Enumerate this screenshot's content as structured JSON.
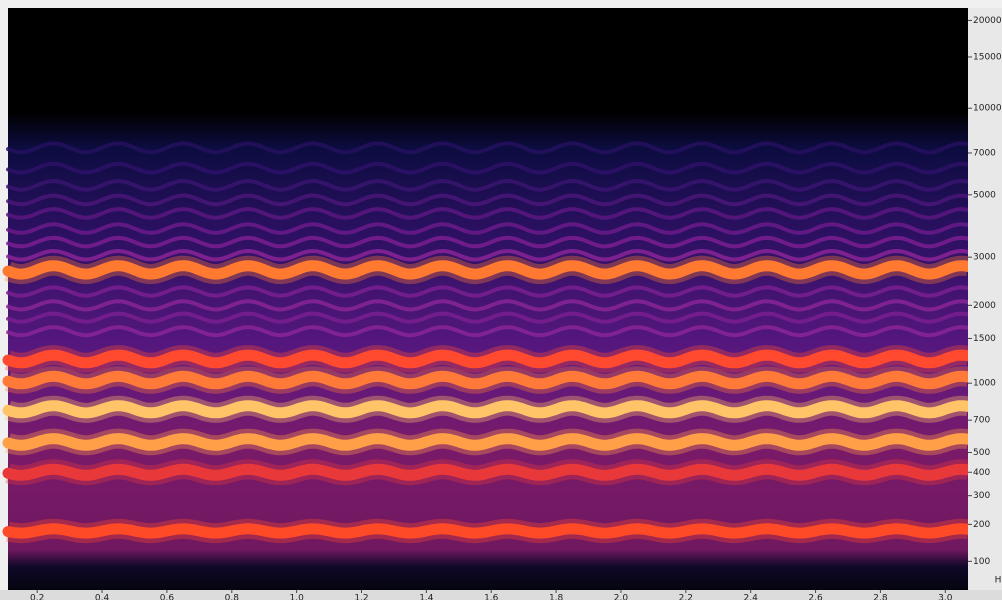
{
  "chart_data": {
    "type": "spectrogram",
    "xlim": [
      0.11,
      3.07
    ],
    "xticks": [
      0.2,
      0.4,
      0.6,
      0.8,
      {
        "value": 1,
        "label": "1.0"
      },
      1.2,
      1.4,
      1.6,
      1.8,
      {
        "value": 2,
        "label": "2.0"
      },
      2.2,
      2.4,
      2.6,
      2.8,
      {
        "value": 3,
        "label": "3.0"
      }
    ],
    "ylim": [
      40,
      22050
    ],
    "yticks": [
      100,
      200,
      300,
      400,
      500,
      700,
      1000,
      1500,
      2000,
      3000,
      5000,
      7000,
      10000,
      15000,
      20000
    ],
    "y_unit": "H",
    "bands": [
      {
        "freq": 180,
        "color": "#ff4a28"
      },
      {
        "freq": 400,
        "color": "#e8383a"
      },
      {
        "freq": 560,
        "color": "#ffa048"
      },
      {
        "freq": 780,
        "color": "#ffc468"
      },
      {
        "freq": 1030,
        "color": "#ff7a38"
      },
      {
        "freq": 1250,
        "color": "#ff4a30"
      },
      {
        "freq": 1600,
        "color": "#8a2496"
      },
      {
        "freq": 1800,
        "color": "#7a1e90"
      },
      {
        "freq": 2000,
        "color": "#8a2496"
      },
      {
        "freq": 2250,
        "color": "#7a1e90"
      },
      {
        "freq": 2700,
        "color": "#ff7a30"
      },
      {
        "freq": 3050,
        "color": "#8a2496"
      },
      {
        "freq": 3400,
        "color": "#7a1e90"
      },
      {
        "freq": 3800,
        "color": "#6a1a88"
      },
      {
        "freq": 4300,
        "color": "#5a1880"
      },
      {
        "freq": 4800,
        "color": "#4a1678"
      },
      {
        "freq": 5400,
        "color": "#3a1470"
      },
      {
        "freq": 6200,
        "color": "#2e1268"
      },
      {
        "freq": 7300,
        "color": "#24105e"
      }
    ]
  }
}
